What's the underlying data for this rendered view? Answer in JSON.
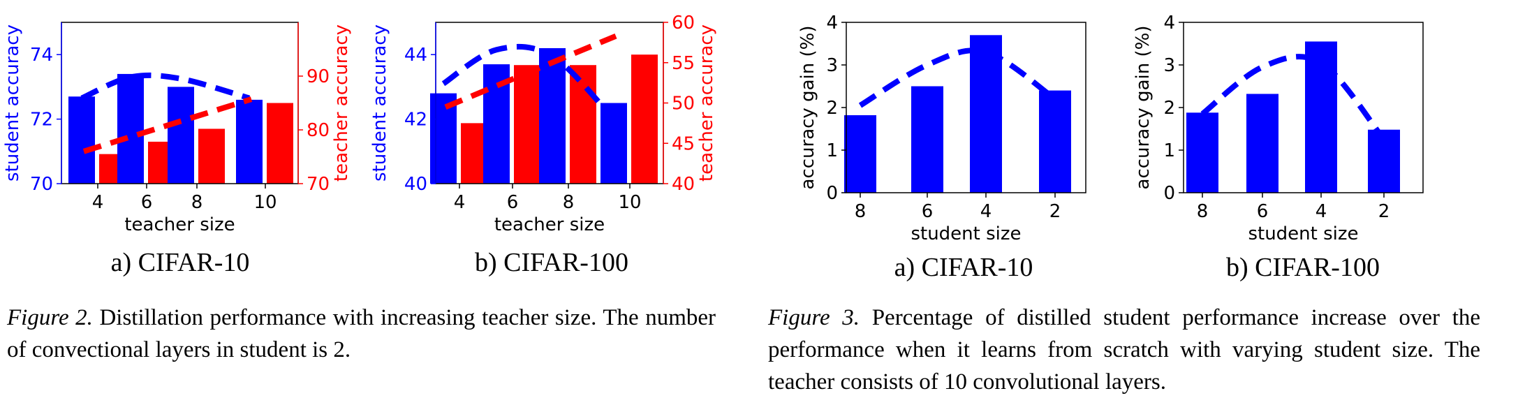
{
  "colors": {
    "student": "#0000ff",
    "teacher": "#ff0000",
    "axis": "#000000"
  },
  "chart_data": [
    {
      "type": "bar",
      "subtitle": "a) CIFAR-10",
      "xlabel": "teacher size",
      "ylabel": "student accuracy",
      "ylabel_right": "teacher accuracy",
      "categories": [
        "4",
        "6",
        "8",
        "10"
      ],
      "ylim": [
        70,
        75
      ],
      "yticks": [
        "70",
        "72",
        "74"
      ],
      "ylim_right": [
        70,
        100
      ],
      "yticks_right": [
        "70",
        "80",
        "90"
      ],
      "series": [
        {
          "values": [
            72.7,
            73.4,
            73.0,
            72.6
          ],
          "axis": "left",
          "color": "#0000ff"
        },
        {
          "values": [
            75.5,
            77.8,
            80.2,
            85.0
          ],
          "axis": "right",
          "color": "#ff0000"
        }
      ],
      "trend_student": [
        72.65,
        73.3,
        73.25,
        72.65
      ],
      "trend_teacher": [
        76.0,
        78.7,
        81.2,
        85.7
      ]
    },
    {
      "type": "bar",
      "subtitle": "b) CIFAR-100",
      "xlabel": "teacher size",
      "ylabel": "student accuracy",
      "ylabel_right": "teacher accuracy",
      "categories": [
        "4",
        "6",
        "8",
        "10"
      ],
      "ylim": [
        40,
        45
      ],
      "yticks": [
        "40",
        "42",
        "44"
      ],
      "ylim_right": [
        40,
        60
      ],
      "yticks_right": [
        "40",
        "45",
        "50",
        "55",
        "60"
      ],
      "series": [
        {
          "values": [
            42.8,
            43.7,
            44.2,
            42.5
          ],
          "axis": "left",
          "color": "#0000ff"
        },
        {
          "values": [
            47.5,
            54.7,
            54.7,
            56.0
          ],
          "axis": "right",
          "color": "#ff0000"
        }
      ],
      "trend_student": [
        43.1,
        44.15,
        43.95,
        42.0
      ],
      "trend_teacher": [
        49.5,
        52.3,
        55.2,
        58.3
      ]
    },
    {
      "type": "bar",
      "subtitle": "a) CIFAR-10",
      "xlabel": "student size",
      "ylabel": "accuracy gain (%)",
      "categories": [
        "8",
        "6",
        "4",
        "2"
      ],
      "ylim": [
        0,
        4
      ],
      "yticks": [
        "0",
        "1",
        "2",
        "3",
        "4"
      ],
      "series": [
        {
          "values": [
            1.82,
            2.5,
            3.7,
            2.4
          ],
          "axis": "left",
          "color": "#0000ff"
        }
      ],
      "trend": [
        2.05,
        3.0,
        3.3,
        2.2
      ]
    },
    {
      "type": "bar",
      "subtitle": "b) CIFAR-100",
      "xlabel": "student size",
      "ylabel": "accuracy gain (%)",
      "categories": [
        "8",
        "6",
        "4",
        "2"
      ],
      "ylim": [
        0,
        4
      ],
      "yticks": [
        "0",
        "1",
        "2",
        "3",
        "4"
      ],
      "series": [
        {
          "values": [
            1.88,
            2.32,
            3.55,
            1.48
          ],
          "axis": "left",
          "color": "#0000ff"
        }
      ],
      "trend": [
        1.85,
        2.95,
        3.05,
        1.25
      ]
    }
  ],
  "captions": {
    "fig2": {
      "lead": "Figure 2.",
      "text": "Distillation performance with increasing teacher size. The number of convectional layers in student is 2."
    },
    "fig3": {
      "lead": "Figure 3.",
      "text": "Percentage of distilled student performance increase over the performance when it learns from scratch with varying student size. The teacher consists of 10 convolutional layers."
    }
  }
}
